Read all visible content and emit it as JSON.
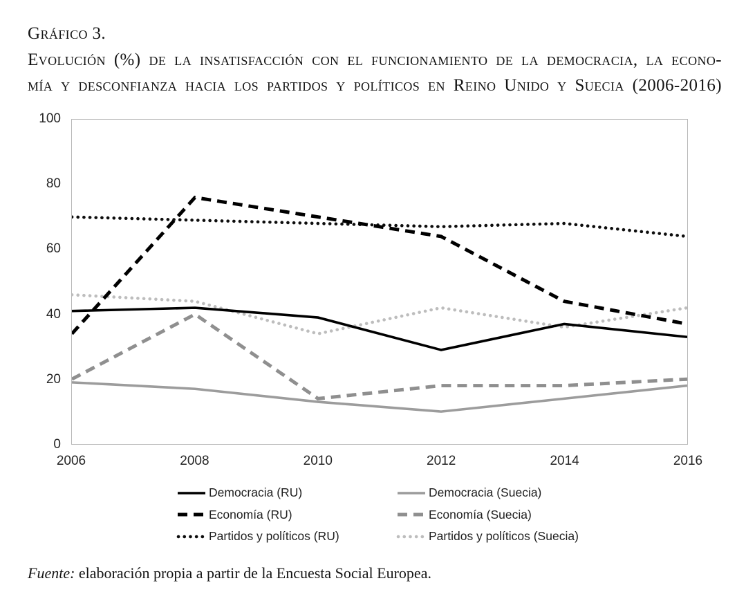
{
  "header": {
    "label": "Gráfico 3.",
    "title_line1": "Evolución (%) de la insatisfacción con el funcionamiento de la democracia, la econo-",
    "title_line2": "mía y desconfianza hacia los partidos y políticos en Reino Unido y Suecia (2006-2016)"
  },
  "chart_data": {
    "type": "line",
    "title": "Evolución (%) de la insatisfacción con el funcionamiento de la democracia, la economía y desconfianza hacia los partidos y políticos en Reino Unido y Suecia (2006-2016)",
    "x": [
      "2006",
      "2008",
      "2010",
      "2012",
      "2014",
      "2016"
    ],
    "xlabel": "",
    "ylabel": "",
    "ylim": [
      0,
      100
    ],
    "yticks": [
      "100",
      "80",
      "60",
      "40",
      "20",
      "0"
    ],
    "grid": false,
    "legend_position": "bottom",
    "series": [
      {
        "name": "Democracia (RU)",
        "style": "solid",
        "color": "#000000",
        "values": [
          41,
          42,
          39,
          29,
          37,
          33
        ]
      },
      {
        "name": "Economía (RU)",
        "style": "dashed",
        "color": "#000000",
        "values": [
          34,
          76,
          70,
          64,
          44,
          37
        ]
      },
      {
        "name": "Partidos y políticos (RU)",
        "style": "dotted",
        "color": "#0d0d0d",
        "values": [
          70,
          69,
          68,
          67,
          68,
          64
        ]
      },
      {
        "name": "Democracia (Suecia)",
        "style": "solid",
        "color": "#9c9c9c",
        "values": [
          19,
          17,
          13,
          10,
          14,
          18
        ]
      },
      {
        "name": "Economía (Suecia)",
        "style": "dashed",
        "color": "#8f8f8f",
        "values": [
          20,
          40,
          14,
          18,
          18,
          20
        ]
      },
      {
        "name": "Partidos y políticos (Suecia)",
        "style": "dotted",
        "color": "#bdbdbd",
        "values": [
          46,
          44,
          34,
          42,
          36,
          42
        ]
      }
    ]
  },
  "source": {
    "label": "Fuente:",
    "text": " elaboración propia a partir de la Encuesta Social Europea."
  }
}
